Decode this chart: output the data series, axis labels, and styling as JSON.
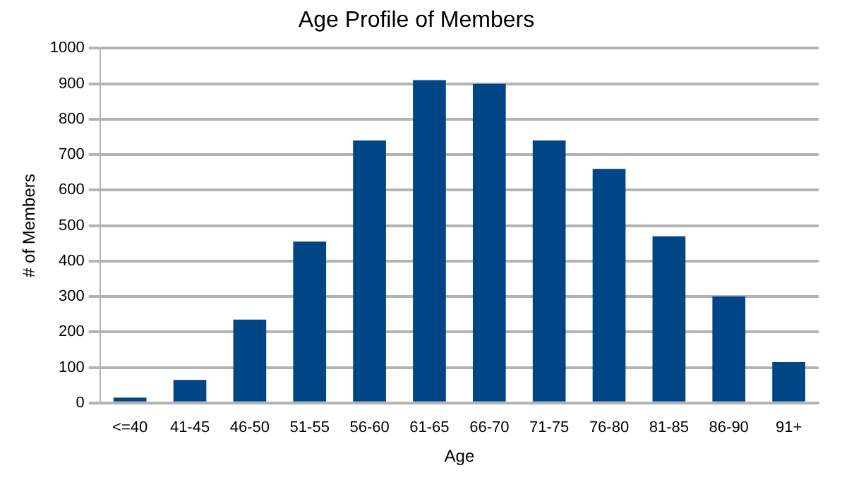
{
  "chart_data": {
    "type": "bar",
    "title": "Age Profile of Members",
    "xlabel": "Age",
    "ylabel": "# of Members",
    "categories": [
      "<=40",
      "41-45",
      "46-50",
      "51-55",
      "56-60",
      "61-65",
      "66-70",
      "71-75",
      "76-80",
      "81-85",
      "86-90",
      "91+"
    ],
    "values": [
      15,
      65,
      235,
      455,
      740,
      910,
      900,
      740,
      660,
      470,
      300,
      115
    ],
    "color": "#004586",
    "ylim": [
      0,
      1000
    ],
    "yticks": [
      0,
      100,
      200,
      300,
      400,
      500,
      600,
      700,
      800,
      900,
      1000
    ],
    "grid": "y",
    "legend": false
  }
}
